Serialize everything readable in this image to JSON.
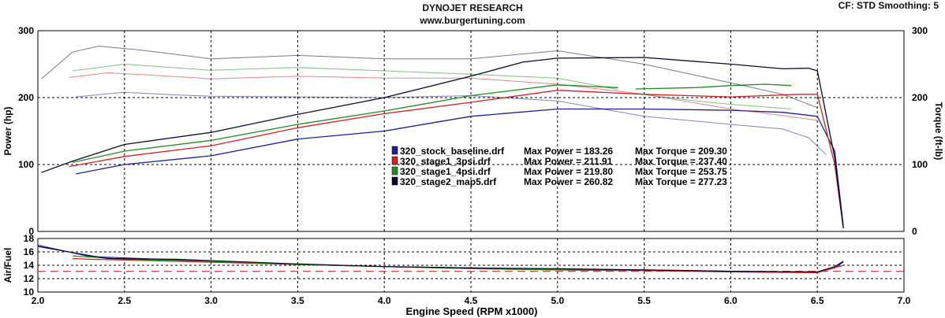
{
  "header": {
    "title": "DYNOJET RESEARCH",
    "subtitle": "www.burgertuning.com",
    "cf_label": "CF: STD  Smoothing: 5"
  },
  "colors": {
    "stock": "#1e1e96",
    "stage1_3psi": "#d42020",
    "stage1_4psi": "#1e8c1e",
    "stage2": "#0a0a2a",
    "afr_target": "#d42020",
    "grid": "#000000"
  },
  "chart_data": [
    {
      "type": "line",
      "xlabel": "Engine Speed (RPM x1000)",
      "ylabel": "Power (hp)",
      "y2label": "Torque (ft-lb)",
      "xlim": [
        2.0,
        7.0
      ],
      "ylim": [
        0,
        300
      ],
      "y2lim": [
        0,
        300
      ],
      "xticks": [
        "2.0",
        "2.5",
        "3.0",
        "3.5",
        "4.0",
        "4.5",
        "5.0",
        "5.5",
        "6.0",
        "6.5",
        "7.0"
      ],
      "yticks": [
        "0",
        "100",
        "200",
        "300"
      ],
      "y2ticks": [
        "0",
        "100",
        "200",
        "300"
      ],
      "grid": true,
      "legend": [
        {
          "file": "320_stock_baseline.drf",
          "max_power": "Max Power = 183.26",
          "max_torque": "Max Torque = 209.30"
        },
        {
          "file": "320_stage1_3psi.drf",
          "max_power": "Max Power = 211.91",
          "max_torque": "Max Torque = 237.40"
        },
        {
          "file": "320_stage1_4psi.drf",
          "max_power": "Max Power = 219.80",
          "max_torque": "Max Torque = 253.75"
        },
        {
          "file": "320_stage2_map5.drf",
          "max_power": "Max Power = 260.82",
          "max_torque": "Max Torque = 277.23"
        }
      ],
      "series": [
        {
          "name": "320_stock_baseline.drf",
          "kind": "power",
          "x": [
            2.22,
            2.5,
            3.0,
            3.5,
            4.0,
            4.5,
            5.0,
            5.5,
            6.0,
            6.3,
            6.5,
            6.6,
            6.65
          ],
          "y": [
            86,
            100,
            113,
            138,
            150,
            172,
            183,
            183,
            181,
            178,
            172,
            120,
            8
          ]
        },
        {
          "name": "320_stock_baseline.drf",
          "kind": "torque",
          "x": [
            2.22,
            2.5,
            2.8,
            3.0,
            3.5,
            4.0,
            4.5,
            5.0,
            5.5,
            6.0,
            6.3,
            6.45,
            6.55
          ],
          "y": [
            201,
            208,
            204,
            202,
            201,
            200,
            203,
            195,
            172,
            160,
            153,
            140,
            115
          ]
        },
        {
          "name": "320_stage1_3psi.drf",
          "kind": "power",
          "x": [
            2.18,
            2.5,
            3.0,
            3.5,
            4.0,
            4.5,
            5.0,
            5.5,
            6.0,
            6.4,
            6.5,
            6.6,
            6.65
          ],
          "y": [
            97,
            112,
            128,
            155,
            176,
            193,
            211,
            205,
            201,
            205,
            205,
            100,
            5
          ]
        },
        {
          "name": "320_stage1_3psi.drf",
          "kind": "torque",
          "x": [
            2.18,
            2.4,
            2.7,
            3.0,
            3.5,
            4.0,
            4.5,
            5.0,
            5.5,
            6.0,
            6.3,
            6.5
          ],
          "y": [
            230,
            237,
            233,
            228,
            232,
            229,
            229,
            220,
            205,
            183,
            173,
            166
          ]
        },
        {
          "name": "320_stage1_4psi.drf",
          "kind": "power",
          "x": [
            2.2,
            2.5,
            3.0,
            3.5,
            4.0,
            4.5,
            5.0,
            5.35
          ],
          "y": [
            103,
            120,
            136,
            160,
            180,
            203,
            219,
            215
          ]
        },
        {
          "name": "320_stage1_4psi.drf",
          "kind": "torque",
          "x": [
            2.2,
            2.5,
            3.0,
            3.5,
            4.0,
            4.5,
            5.0,
            5.35
          ],
          "y": [
            240,
            250,
            241,
            245,
            240,
            235,
            229,
            212
          ]
        },
        {
          "name": "320_stage1_4psi.drf",
          "kind": "power",
          "x": [
            5.45,
            5.8,
            6.0,
            6.2,
            6.35
          ],
          "y": [
            213,
            215,
            218,
            220,
            218
          ]
        },
        {
          "name": "320_stage1_4psi.drf",
          "kind": "torque",
          "x": [
            5.45,
            5.8,
            6.0,
            6.2,
            6.35
          ],
          "y": [
            206,
            195,
            190,
            186,
            183
          ]
        },
        {
          "name": "320_stage2_map5.drf",
          "kind": "power",
          "x": [
            2.02,
            2.2,
            2.5,
            3.0,
            3.5,
            4.0,
            4.5,
            4.8,
            5.0,
            5.5,
            6.0,
            6.3,
            6.45,
            6.5,
            6.6,
            6.65
          ],
          "y": [
            88,
            105,
            130,
            148,
            175,
            200,
            232,
            253,
            259,
            260,
            250,
            243,
            244,
            240,
            110,
            5
          ]
        },
        {
          "name": "320_stage2_map5.drf",
          "kind": "torque",
          "x": [
            2.02,
            2.2,
            2.35,
            2.6,
            3.0,
            3.5,
            4.0,
            4.5,
            5.0,
            5.5,
            6.0,
            6.3,
            6.5
          ],
          "y": [
            228,
            268,
            277,
            271,
            258,
            263,
            258,
            258,
            270,
            250,
            222,
            205,
            185
          ]
        }
      ]
    },
    {
      "type": "line",
      "ylabel": "Air/Fuel",
      "xlim": [
        2.0,
        7.0
      ],
      "ylim": [
        10,
        18
      ],
      "yticks": [
        "18",
        "16",
        "14",
        "12",
        "10"
      ],
      "target_afr": 13.1,
      "series": [
        {
          "name": "320_stock_baseline.drf",
          "x": [
            2.0,
            2.3,
            2.8,
            3.5,
            4.0,
            4.5,
            5.0,
            5.5,
            6.0,
            6.5,
            6.6,
            6.65
          ],
          "y": [
            17.0,
            15.3,
            14.8,
            14.1,
            13.8,
            13.6,
            13.4,
            13.3,
            13.1,
            13.0,
            13.6,
            14.5
          ]
        },
        {
          "name": "320_stage1_3psi.drf",
          "x": [
            2.2,
            2.3,
            2.8,
            3.5,
            4.0,
            4.5,
            5.0,
            5.5,
            6.0,
            6.5,
            6.65
          ],
          "y": [
            15.0,
            14.9,
            14.6,
            14.1,
            13.8,
            13.5,
            13.3,
            13.2,
            13.0,
            12.9,
            14.0
          ]
        },
        {
          "name": "320_stage1_4psi.drf",
          "x": [
            2.2,
            2.5,
            3.0,
            3.5,
            4.0,
            4.5,
            5.0,
            5.35
          ],
          "y": [
            15.4,
            14.9,
            14.6,
            14.1,
            13.8,
            13.5,
            13.3,
            13.2
          ]
        },
        {
          "name": "320_stage2_map5.drf",
          "x": [
            2.0,
            2.4,
            2.8,
            3.5,
            4.0,
            4.5,
            5.0,
            5.5,
            6.0,
            6.5,
            6.6,
            6.65
          ],
          "y": [
            16.8,
            15.0,
            14.9,
            14.2,
            13.8,
            13.6,
            13.5,
            13.3,
            13.1,
            13.0,
            13.8,
            14.6
          ]
        }
      ]
    }
  ]
}
